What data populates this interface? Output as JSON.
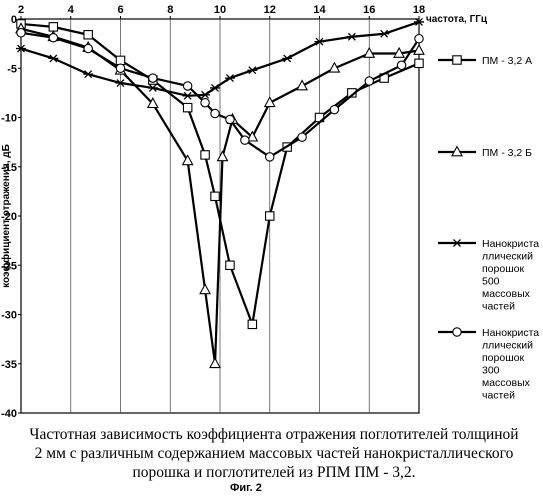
{
  "chart_data": {
    "type": "line",
    "xlabel": "частота, ГГц",
    "ylabel": "коэффициент отражения, дБ",
    "xlim": [
      2,
      18
    ],
    "ylim": [
      -40,
      0
    ],
    "x_ticks": [
      2,
      4,
      6,
      8,
      10,
      12,
      14,
      16,
      18
    ],
    "y_ticks": [
      0,
      -5,
      -10,
      -15,
      -20,
      -25,
      -30,
      -35,
      -40
    ],
    "grid": "vertical",
    "legend": "right",
    "series": [
      {
        "name": "ПМ - 3,2 А",
        "marker": "square",
        "x": [
          2,
          3.3,
          4.7,
          6,
          7.3,
          8.7,
          9.4,
          9.8,
          10.4,
          11.3,
          12,
          12.7,
          14,
          15.3,
          16.6,
          18
        ],
        "y": [
          -0.5,
          -0.8,
          -1.6,
          -4.2,
          -6.2,
          -9,
          -13.8,
          -18,
          -25,
          -31,
          -20,
          -13,
          -10,
          -7.5,
          -6,
          -4.5
        ]
      },
      {
        "name": "ПМ - 3,2 Б",
        "marker": "triangle",
        "x": [
          2,
          3.3,
          4.7,
          6,
          7.3,
          8.7,
          9.4,
          9.8,
          10.1,
          10.5,
          11.3,
          12,
          13.3,
          14.6,
          16,
          17.2,
          18
        ],
        "y": [
          -1,
          -1.8,
          -2.9,
          -5.2,
          -8.6,
          -14.4,
          -27.5,
          -35,
          -14,
          -10.2,
          -12,
          -8.5,
          -6.8,
          -5,
          -3.5,
          -3.5,
          -3.2
        ]
      },
      {
        "name": "Нанокристаллический порошок 500 массовых частей",
        "marker": "star",
        "x": [
          2,
          3.3,
          4.7,
          6,
          7.3,
          8.7,
          9.4,
          9.8,
          10.4,
          11.3,
          12.7,
          14,
          15.3,
          16.6,
          18
        ],
        "y": [
          -3,
          -4,
          -5.6,
          -6.5,
          -7,
          -7.8,
          -7.7,
          -7,
          -6,
          -5.2,
          -4,
          -2.3,
          -1.8,
          -1.5,
          -0.3
        ]
      },
      {
        "name": "Нанокристаллический порошок 300 массовых частей",
        "marker": "circle",
        "x": [
          2,
          3.3,
          4.7,
          6,
          7.3,
          8.7,
          9.4,
          9.8,
          10.4,
          11,
          12,
          13.3,
          14.6,
          16,
          17.3,
          18
        ],
        "y": [
          -1.4,
          -1.9,
          -3,
          -5,
          -6,
          -6.8,
          -8.5,
          -9.6,
          -10.2,
          -12.3,
          -14,
          -12,
          -9.2,
          -6.3,
          -4.7,
          -2
        ]
      }
    ],
    "legend_lines": [
      [
        "ПМ - 3,2 А"
      ],
      [
        "ПМ - 3,2 Б"
      ],
      [
        "Нанокриста",
        "ллический",
        "порошок",
        "500",
        "массовых",
        "частей"
      ],
      [
        "Нанокриста",
        "ллический",
        "порошок",
        "300",
        "массовых",
        "частей"
      ]
    ]
  },
  "caption": {
    "lines": [
      "Частотная зависимость коэффициента отражения поглотителей толщиной",
      "2 мм с различным содержанием массовых частей нанокристаллического",
      "порошка и поглотителей из РПМ ПМ - 3,2."
    ]
  },
  "figure_label": "Фиг. 2"
}
